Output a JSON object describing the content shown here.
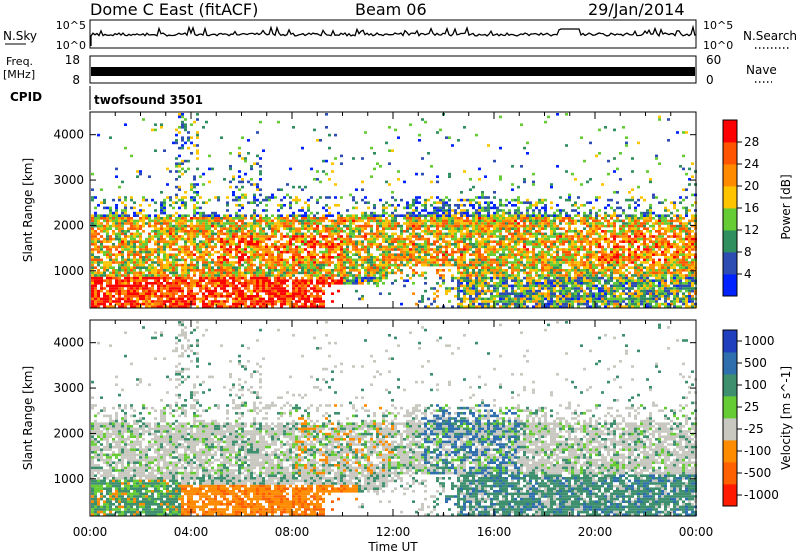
{
  "header": {
    "station": "Dome C East (fitACF)",
    "beam": "Beam 06",
    "date": "29/Jan/2014"
  },
  "strips": {
    "nsky_label": "N.Sky",
    "nsearch_label": "N.Search",
    "nsky_ticks": [
      "10^5",
      "10^0"
    ],
    "nsearch_ticks": [
      "10^5",
      "10^0"
    ],
    "freq_label_1": "Freq.",
    "freq_label_2": "[MHz]",
    "freq_ticks": [
      "18",
      "8"
    ],
    "nave_label": "Nave",
    "nave_ticks": [
      "60",
      "0"
    ],
    "cpid_label": "CPID",
    "cpid_value": "twofsound 3501"
  },
  "axes": {
    "ylabel": "Slant Range [km]",
    "xlabel": "Time UT",
    "x_ticks": [
      "00:00",
      "04:00",
      "08:00",
      "12:00",
      "16:00",
      "20:00",
      "00:00"
    ],
    "y_ticks": [
      "1000",
      "2000",
      "3000",
      "4000"
    ]
  },
  "colors": {
    "power": [
      "#0022ff",
      "#2d4db2",
      "#2f8f5f",
      "#66cc33",
      "#ffc400",
      "#ff8a00",
      "#ff5500",
      "#ff0000"
    ],
    "velocity": [
      "#1f3fbf",
      "#2f6fae",
      "#3d8f6e",
      "#66cc33",
      "#c8c8c0",
      "#ff8c00",
      "#ff6000",
      "#ff1a00"
    ]
  },
  "chart_data": [
    {
      "type": "heatmap",
      "name": "power",
      "title": "",
      "xlabel": "Time UT",
      "ylabel": "Slant Range [km]",
      "xlim": [
        0,
        24
      ],
      "ylim": [
        180,
        4500
      ],
      "colorbar_label": "Power [dB]",
      "colorbar_ticks": [
        "4",
        "8",
        "12",
        "16",
        "20",
        "24",
        "28"
      ],
      "colorbar_range": [
        0,
        32
      ]
    },
    {
      "type": "heatmap",
      "name": "velocity",
      "title": "",
      "xlabel": "Time UT",
      "ylabel": "Slant Range [km]",
      "xlim": [
        0,
        24
      ],
      "ylim": [
        180,
        4500
      ],
      "colorbar_label": "Velocity [m s^-1]",
      "colorbar_ticks": [
        "1000",
        "500",
        "100",
        "25",
        "-25",
        "-100",
        "-500",
        "-1000"
      ]
    }
  ]
}
